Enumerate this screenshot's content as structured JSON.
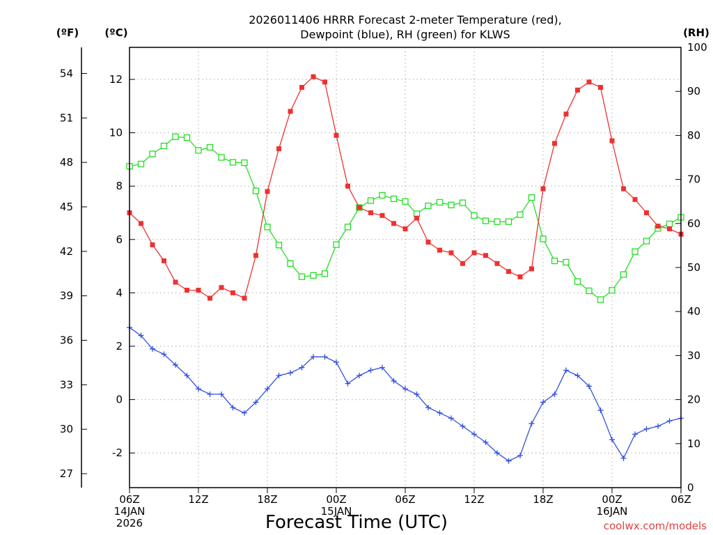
{
  "chart_data": {
    "type": "line",
    "title_lines": [
      "2026011406 HRRR Forecast 2-meter Temperature (red),",
      "Dewpoint (blue), RH (green) for KLWS"
    ],
    "xlabel": "Forecast Time (UTC)",
    "credit": "coolwx.com/models",
    "x_hours": [
      0,
      1,
      2,
      3,
      4,
      5,
      6,
      7,
      8,
      9,
      10,
      11,
      12,
      13,
      14,
      15,
      16,
      17,
      18,
      19,
      20,
      21,
      22,
      23,
      24,
      25,
      26,
      27,
      28,
      29,
      30,
      31,
      32,
      33,
      34,
      35,
      36,
      37,
      38,
      39,
      40,
      41,
      42,
      43,
      44,
      45,
      46,
      47,
      48
    ],
    "x_ticks": [
      {
        "hour": 0,
        "lines": [
          "06Z",
          "14JAN",
          "2026"
        ]
      },
      {
        "hour": 6,
        "lines": [
          "12Z"
        ]
      },
      {
        "hour": 12,
        "lines": [
          "18Z"
        ]
      },
      {
        "hour": 18,
        "lines": [
          "00Z",
          "15JAN"
        ]
      },
      {
        "hour": 24,
        "lines": [
          "06Z"
        ]
      },
      {
        "hour": 30,
        "lines": [
          "12Z"
        ]
      },
      {
        "hour": 36,
        "lines": [
          "18Z"
        ]
      },
      {
        "hour": 42,
        "lines": [
          "00Z",
          "16JAN"
        ]
      },
      {
        "hour": 48,
        "lines": [
          "06Z"
        ]
      }
    ],
    "axes": {
      "celsius": {
        "unit_label": "(ºC)",
        "range": [
          -3.3,
          13.2
        ],
        "ticks": [
          "-2",
          "0",
          "2",
          "4",
          "6",
          "8",
          "10",
          "12"
        ]
      },
      "fahrenheit": {
        "unit_label": "(ºF)",
        "ticks": [
          "27",
          "30",
          "33",
          "36",
          "39",
          "42",
          "45",
          "48",
          "51",
          "54"
        ]
      },
      "rh": {
        "unit_label": "(RH)",
        "range": [
          0,
          100
        ],
        "ticks": [
          "0",
          "10",
          "20",
          "30",
          "40",
          "50",
          "60",
          "70",
          "80",
          "90",
          "100"
        ]
      }
    },
    "grid": true,
    "series": [
      {
        "name": "Temperature",
        "axis": "celsius",
        "color": "#f03030",
        "marker": "filled-square",
        "values": [
          7.0,
          6.6,
          5.8,
          5.2,
          4.4,
          4.1,
          4.1,
          3.8,
          4.2,
          4.0,
          3.8,
          5.4,
          7.8,
          9.4,
          10.8,
          11.7,
          12.1,
          11.9,
          9.9,
          8.0,
          7.2,
          7.0,
          6.9,
          6.6,
          6.4,
          6.8,
          5.9,
          5.6,
          5.5,
          5.1,
          5.5,
          5.4,
          5.1,
          4.8,
          4.6,
          4.9,
          7.9,
          9.6,
          10.7,
          11.6,
          11.9,
          11.7,
          9.7,
          7.9,
          7.5,
          7.0,
          6.5,
          6.4,
          6.2
        ]
      },
      {
        "name": "Dewpoint",
        "axis": "celsius",
        "color": "#3050e0",
        "marker": "plus",
        "values": [
          2.7,
          2.4,
          1.9,
          1.7,
          1.3,
          0.9,
          0.4,
          0.2,
          0.2,
          -0.3,
          -0.5,
          -0.1,
          0.4,
          0.9,
          1.0,
          1.2,
          1.6,
          1.6,
          1.4,
          0.6,
          0.9,
          1.1,
          1.2,
          0.7,
          0.4,
          0.2,
          -0.3,
          -0.5,
          -0.7,
          -1.0,
          -1.3,
          -1.6,
          -2.0,
          -2.3,
          -2.1,
          -0.9,
          -0.1,
          0.2,
          1.1,
          0.9,
          0.5,
          -0.4,
          -1.5,
          -2.2,
          -1.3,
          -1.1,
          -1.0,
          -0.8,
          -0.7
        ]
      },
      {
        "name": "RH",
        "axis": "rh",
        "color": "#22dd22",
        "marker": "open-square",
        "values": [
          73.0,
          73.5,
          75.8,
          77.6,
          79.7,
          79.5,
          76.6,
          77.3,
          75.0,
          73.9,
          73.8,
          67.4,
          59.2,
          55.1,
          50.9,
          47.9,
          48.2,
          48.6,
          55.2,
          59.2,
          63.6,
          65.2,
          66.4,
          65.6,
          65.0,
          62.2,
          64.0,
          64.8,
          64.2,
          64.7,
          61.8,
          60.6,
          60.4,
          60.4,
          62.0,
          65.9,
          56.5,
          51.5,
          51.2,
          46.8,
          44.7,
          42.7,
          44.8,
          48.4,
          53.6,
          56.0,
          58.9,
          59.9,
          61.4
        ]
      }
    ]
  }
}
